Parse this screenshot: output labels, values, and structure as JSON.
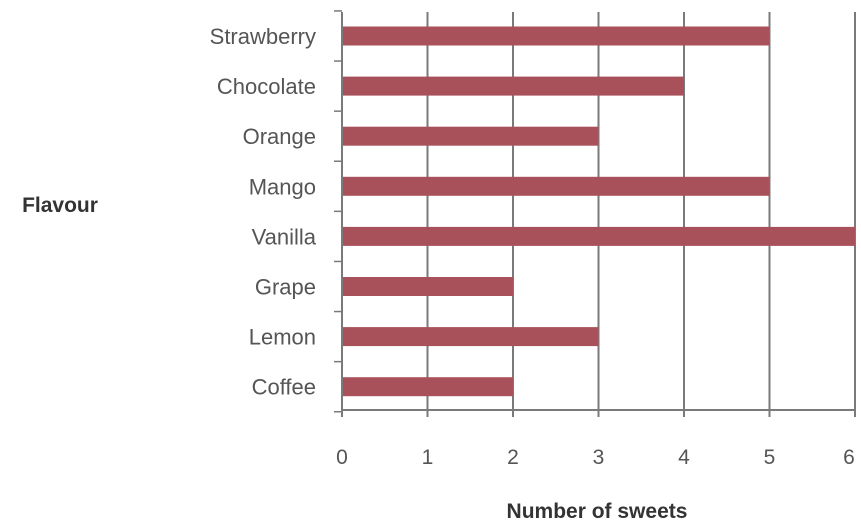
{
  "chart_data": {
    "type": "bar",
    "orientation": "horizontal",
    "categories": [
      "Strawberry",
      "Chocolate",
      "Orange",
      "Mango",
      "Vanilla",
      "Grape",
      "Lemon",
      "Coffee"
    ],
    "values": [
      5,
      4,
      3,
      5,
      6,
      2,
      3,
      2
    ],
    "xlabel": "Number of sweets",
    "ylabel": "Flavour",
    "xlim": [
      0,
      6
    ],
    "xticks": [
      "0",
      "1",
      "2",
      "3",
      "4",
      "5",
      "6"
    ],
    "grid": "vertical",
    "legend": "none",
    "bar_color": "#a9515a",
    "grid_color": "#7a7a7a"
  }
}
